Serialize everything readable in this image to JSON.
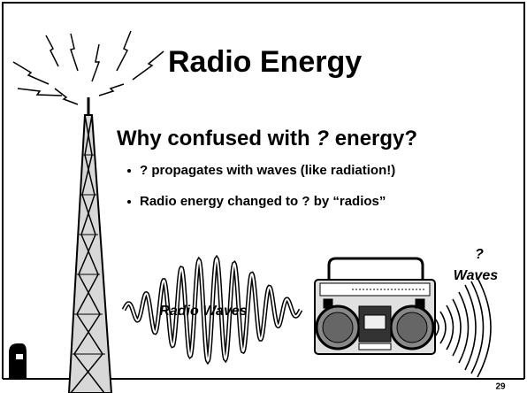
{
  "slide": {
    "title": "Radio Energy",
    "subtitle": {
      "before": "Why confused with",
      "symbol": "?",
      "after": "energy?"
    },
    "bullets": [
      "? propagates with waves (like radiation!)",
      "Radio energy changed to ? by “radios”"
    ],
    "wave_label": "Radio Waves",
    "sound_label": {
      "symbol": "?",
      "text": "Waves"
    },
    "page_number": "29"
  }
}
